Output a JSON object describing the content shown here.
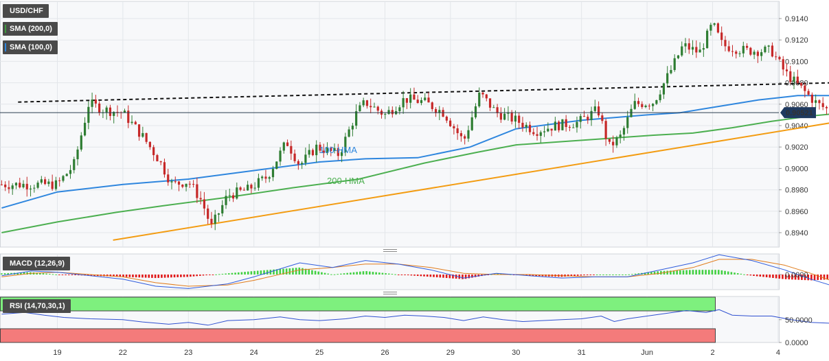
{
  "legend": {
    "symbol": "USD/CHF",
    "sma200": "SMA (200,0)",
    "sma100": "SMA (100,0)",
    "sma200_color": "#3d9a3d",
    "sma100_color": "#2e86de"
  },
  "macd_panel": {
    "label": "MACD (12,26,9)",
    "tick": "0.0000"
  },
  "rsi_panel": {
    "label": "RSI (14,70,30,1)",
    "ticks": [
      "50.0000",
      "0.0000"
    ]
  },
  "chart_data": {
    "type": "candlestick",
    "symbol": "USD/CHF",
    "current_price": "0.90521",
    "ylim": [
      0.893,
      0.915
    ],
    "y_ticks": [
      "0.9140",
      "0.9120",
      "0.9100",
      "0.9080",
      "0.9060",
      "0.9040",
      "0.9020",
      "0.9000",
      "0.8980",
      "0.8960",
      "0.8940"
    ],
    "x_ticks": [
      "19",
      "22",
      "23",
      "24",
      "25",
      "26",
      "29",
      "30",
      "31",
      "Jun",
      "2",
      "4"
    ],
    "colors": {
      "up": "#2e7d32",
      "down": "#c62828",
      "hma100": "#2e86de",
      "hma200": "#4caf50",
      "support": "#f39c12",
      "resistance": "#111111"
    },
    "annotations": [
      {
        "text": "100-HMA",
        "color": "#2e86de"
      },
      {
        "text": "200-HMA",
        "color": "#4caf50"
      }
    ],
    "price_path": [
      [
        0,
        0.8985
      ],
      [
        0.25,
        0.9003
      ],
      [
        0.4,
        0.904
      ],
      [
        0.48,
        0.9061
      ],
      [
        0.7,
        0.9055
      ],
      [
        1.0,
        0.9052
      ],
      [
        1.3,
        0.903
      ],
      [
        1.55,
        0.9008
      ],
      [
        1.75,
        0.8985
      ],
      [
        2.0,
        0.8988
      ],
      [
        2.2,
        0.897
      ],
      [
        2.35,
        0.8945
      ],
      [
        2.6,
        0.8975
      ],
      [
        2.9,
        0.898
      ],
      [
        3.2,
        0.8992
      ],
      [
        3.5,
        0.9025
      ],
      [
        3.7,
        0.9003
      ],
      [
        3.95,
        0.902
      ],
      [
        4.3,
        0.9013
      ],
      [
        4.55,
        0.905
      ],
      [
        4.7,
        0.9062
      ],
      [
        5.0,
        0.905
      ],
      [
        5.3,
        0.9065
      ],
      [
        5.6,
        0.9062
      ],
      [
        5.9,
        0.9052
      ],
      [
        6.2,
        0.9025
      ],
      [
        6.45,
        0.907
      ],
      [
        6.7,
        0.9052
      ],
      [
        7.0,
        0.9045
      ],
      [
        7.3,
        0.9035
      ],
      [
        7.6,
        0.904
      ],
      [
        7.95,
        0.9043
      ],
      [
        8.25,
        0.9055
      ],
      [
        8.42,
        0.902
      ],
      [
        8.6,
        0.903
      ],
      [
        8.8,
        0.906
      ],
      [
        9.1,
        0.9062
      ],
      [
        9.35,
        0.909
      ],
      [
        9.55,
        0.9115
      ],
      [
        9.8,
        0.9108
      ],
      [
        10.0,
        0.9135
      ],
      [
        10.15,
        0.9115
      ],
      [
        10.5,
        0.911
      ],
      [
        10.9,
        0.911
      ],
      [
        11.1,
        0.909
      ],
      [
        11.3,
        0.9078
      ],
      [
        11.6,
        0.906
      ],
      [
        11.85,
        0.9052
      ]
    ],
    "hma100": [
      [
        -0.85,
        0.8963
      ],
      [
        0,
        0.8978
      ],
      [
        1.0,
        0.8985
      ],
      [
        2.0,
        0.899
      ],
      [
        3.0,
        0.8998
      ],
      [
        4.0,
        0.9006
      ],
      [
        4.7,
        0.9009
      ],
      [
        5.5,
        0.901
      ],
      [
        6.3,
        0.902
      ],
      [
        7.0,
        0.9037
      ],
      [
        8.0,
        0.9045
      ],
      [
        9.0,
        0.905
      ],
      [
        9.5,
        0.9052
      ],
      [
        10.0,
        0.9057
      ],
      [
        10.7,
        0.9064
      ],
      [
        11.3,
        0.9068
      ],
      [
        11.85,
        0.9068
      ]
    ],
    "hma200": [
      [
        -0.85,
        0.894
      ],
      [
        0,
        0.895
      ],
      [
        0.9,
        0.8959
      ],
      [
        1.6,
        0.8965
      ],
      [
        2.6,
        0.8973
      ],
      [
        3.6,
        0.8982
      ],
      [
        4.6,
        0.899
      ],
      [
        5.6,
        0.9005
      ],
      [
        6.4,
        0.9015
      ],
      [
        7.0,
        0.9022
      ],
      [
        7.7,
        0.9025
      ],
      [
        8.4,
        0.9028
      ],
      [
        9.1,
        0.9031
      ],
      [
        9.7,
        0.9033
      ],
      [
        10.3,
        0.9038
      ],
      [
        10.9,
        0.9044
      ],
      [
        11.5,
        0.9049
      ],
      [
        11.85,
        0.9051
      ]
    ],
    "support_line": [
      [
        0.85,
        0.8933
      ],
      [
        12.35,
        0.9048
      ]
    ],
    "resistance_line": [
      [
        -0.6,
        0.9062
      ],
      [
        12.55,
        0.9081
      ]
    ],
    "macd": {
      "ylim": [
        -0.0014,
        0.0018
      ],
      "macd_line": [
        [
          -0.85,
          -0.0001
        ],
        [
          -0.4,
          0.0003
        ],
        [
          0.0,
          0.0002
        ],
        [
          1.0,
          -0.0004
        ],
        [
          1.5,
          -0.001
        ],
        [
          2.0,
          -0.0012
        ],
        [
          2.6,
          -0.0008
        ],
        [
          3.0,
          -0.0002
        ],
        [
          3.7,
          0.001
        ],
        [
          4.2,
          0.0006
        ],
        [
          4.7,
          0.0012
        ],
        [
          5.2,
          0.0009
        ],
        [
          5.7,
          0.0004
        ],
        [
          6.2,
          -0.0003
        ],
        [
          6.7,
          0.0001
        ],
        [
          7.2,
          -0.0001
        ],
        [
          7.7,
          -0.0003
        ],
        [
          8.2,
          -0.0002
        ],
        [
          8.7,
          -0.0002
        ],
        [
          9.2,
          0.0004
        ],
        [
          9.7,
          0.001
        ],
        [
          10.1,
          0.0017
        ],
        [
          10.6,
          0.0012
        ],
        [
          11.1,
          0.0004
        ],
        [
          11.5,
          -0.0004
        ],
        [
          11.85,
          -0.001
        ]
      ],
      "signal_line": [
        [
          -0.85,
          -0.0002
        ],
        [
          -0.4,
          0.0001
        ],
        [
          0.0,
          0.0002
        ],
        [
          1.0,
          -0.0002
        ],
        [
          1.5,
          -0.0007
        ],
        [
          2.0,
          -0.001
        ],
        [
          2.6,
          -0.0009
        ],
        [
          3.0,
          -0.0005
        ],
        [
          3.7,
          0.0004
        ],
        [
          4.2,
          0.0006
        ],
        [
          4.7,
          0.0009
        ],
        [
          5.2,
          0.0009
        ],
        [
          5.7,
          0.0006
        ],
        [
          6.2,
          0.0001
        ],
        [
          6.7,
          0.0
        ],
        [
          7.2,
          0.0
        ],
        [
          7.7,
          -0.0001
        ],
        [
          8.2,
          -0.0002
        ],
        [
          8.7,
          -0.0002
        ],
        [
          9.2,
          0.0001
        ],
        [
          9.7,
          0.0006
        ],
        [
          10.1,
          0.0013
        ],
        [
          10.6,
          0.0013
        ],
        [
          11.1,
          0.0008
        ],
        [
          11.5,
          0.0001
        ],
        [
          11.85,
          -0.0006
        ]
      ]
    },
    "rsi": {
      "ylim": [
        0,
        100
      ],
      "overbought": 70,
      "oversold": 30,
      "line": [
        [
          -0.85,
          62
        ],
        [
          -0.5,
          66
        ],
        [
          -0.2,
          60
        ],
        [
          0.1,
          55
        ],
        [
          0.5,
          52
        ],
        [
          1.0,
          50
        ],
        [
          1.3,
          45
        ],
        [
          1.7,
          40
        ],
        [
          2.0,
          44
        ],
        [
          2.3,
          38
        ],
        [
          2.6,
          48
        ],
        [
          3.0,
          50
        ],
        [
          3.4,
          56
        ],
        [
          3.7,
          50
        ],
        [
          4.0,
          48
        ],
        [
          4.4,
          52
        ],
        [
          4.7,
          58
        ],
        [
          5.0,
          55
        ],
        [
          5.3,
          60
        ],
        [
          5.6,
          58
        ],
        [
          5.9,
          55
        ],
        [
          6.2,
          48
        ],
        [
          6.5,
          56
        ],
        [
          6.8,
          50
        ],
        [
          7.1,
          46
        ],
        [
          7.4,
          48
        ],
        [
          7.7,
          50
        ],
        [
          8.0,
          52
        ],
        [
          8.3,
          58
        ],
        [
          8.5,
          46
        ],
        [
          8.7,
          52
        ],
        [
          9.0,
          58
        ],
        [
          9.3,
          64
        ],
        [
          9.6,
          70
        ],
        [
          9.9,
          66
        ],
        [
          10.1,
          72
        ],
        [
          10.3,
          60
        ],
        [
          10.6,
          58
        ],
        [
          10.9,
          58
        ],
        [
          11.2,
          50
        ],
        [
          11.5,
          44
        ],
        [
          11.85,
          42
        ]
      ]
    }
  }
}
